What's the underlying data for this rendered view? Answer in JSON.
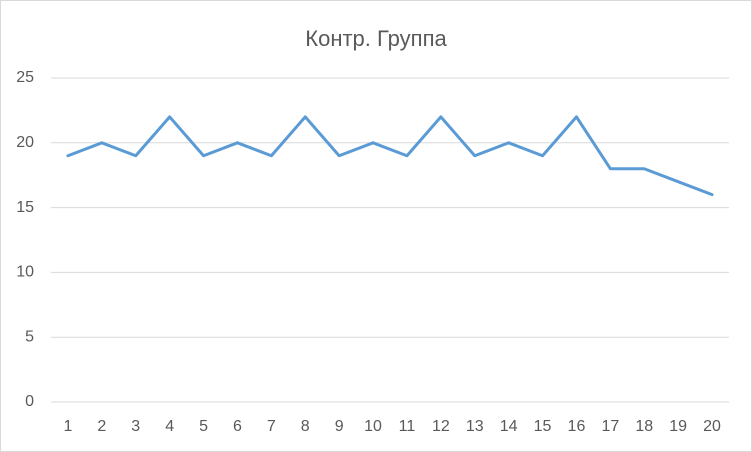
{
  "chart_data": {
    "type": "line",
    "title": "Контр. Группа",
    "categories": [
      "1",
      "2",
      "3",
      "4",
      "5",
      "6",
      "7",
      "8",
      "9",
      "10",
      "11",
      "12",
      "13",
      "14",
      "15",
      "16",
      "17",
      "18",
      "19",
      "20"
    ],
    "series": [
      {
        "color": "#5b9bd5",
        "values": [
          19,
          20,
          19,
          22,
          19,
          20,
          19,
          22,
          19,
          20,
          19,
          22,
          19,
          20,
          19,
          22,
          18,
          18,
          17,
          16
        ]
      }
    ],
    "ylim": [
      0,
      25
    ],
    "yticks": [
      0,
      5,
      10,
      15,
      20,
      25
    ],
    "grid": true
  }
}
